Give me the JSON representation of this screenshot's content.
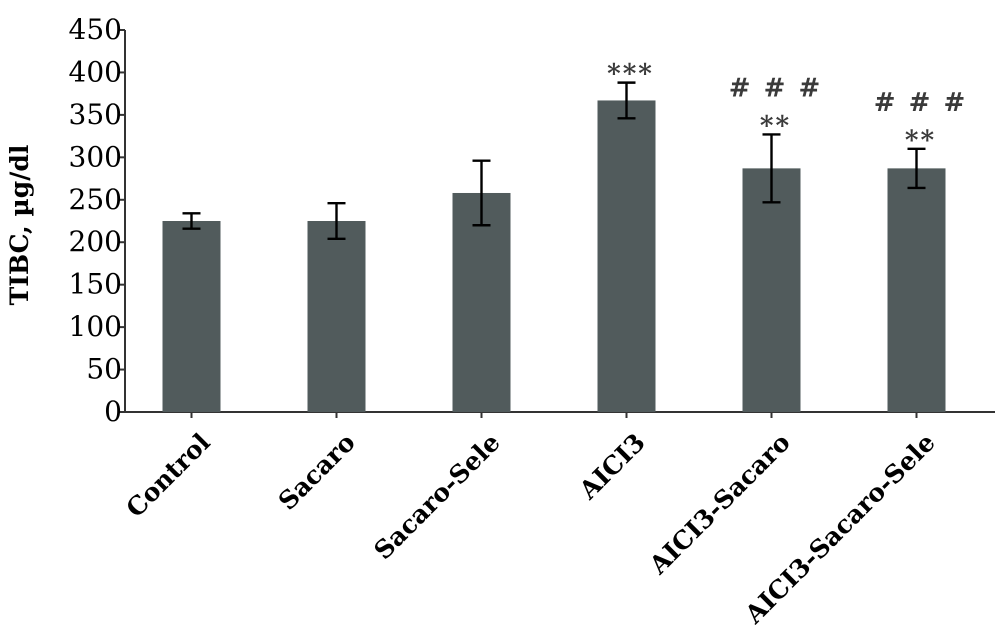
{
  "chart_data": {
    "type": "bar",
    "ylabel": "TIBC, µg/dl",
    "ylim": [
      0,
      450
    ],
    "yticks": [
      "0",
      "50",
      "100",
      "150",
      "200",
      "250",
      "300",
      "350",
      "400",
      "450"
    ],
    "categories": [
      "Control",
      "Sacaro",
      "Sacaro-Sele",
      "AICI3",
      "AICI3-Sacaro",
      "AICI3-Sacaro-Sele"
    ],
    "values": [
      225,
      225,
      258,
      367,
      287,
      287
    ],
    "errors": [
      9,
      21,
      38,
      21,
      40,
      23
    ],
    "significance": [
      [],
      [],
      [],
      [
        "***"
      ],
      [
        "# # #",
        "**"
      ],
      [
        "# # #",
        "**"
      ]
    ],
    "bar_color": "#515b5c",
    "grid": false,
    "legend": "none"
  }
}
